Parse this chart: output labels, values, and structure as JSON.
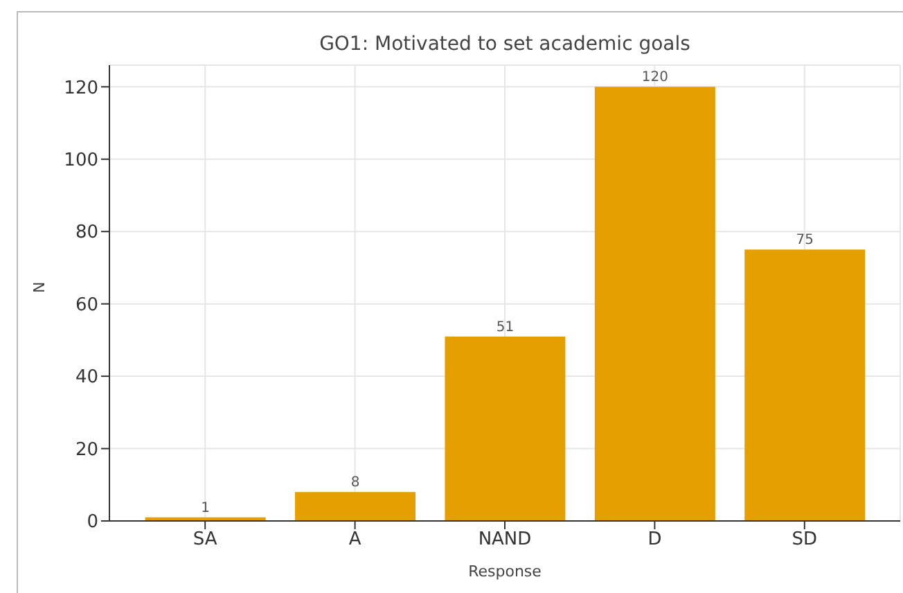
{
  "chart_data": {
    "type": "bar",
    "title": "GO1: Motivated to set academic goals",
    "xlabel": "Response",
    "ylabel": "N",
    "categories": [
      "SA",
      "A",
      "NAND",
      "D",
      "SD"
    ],
    "values": [
      1,
      8,
      51,
      120,
      75
    ],
    "color": "#e69f00",
    "ylim": [
      0,
      126
    ],
    "yticks": [
      0,
      20,
      40,
      60,
      80,
      100,
      120
    ],
    "grid": true,
    "data_labels": true
  }
}
